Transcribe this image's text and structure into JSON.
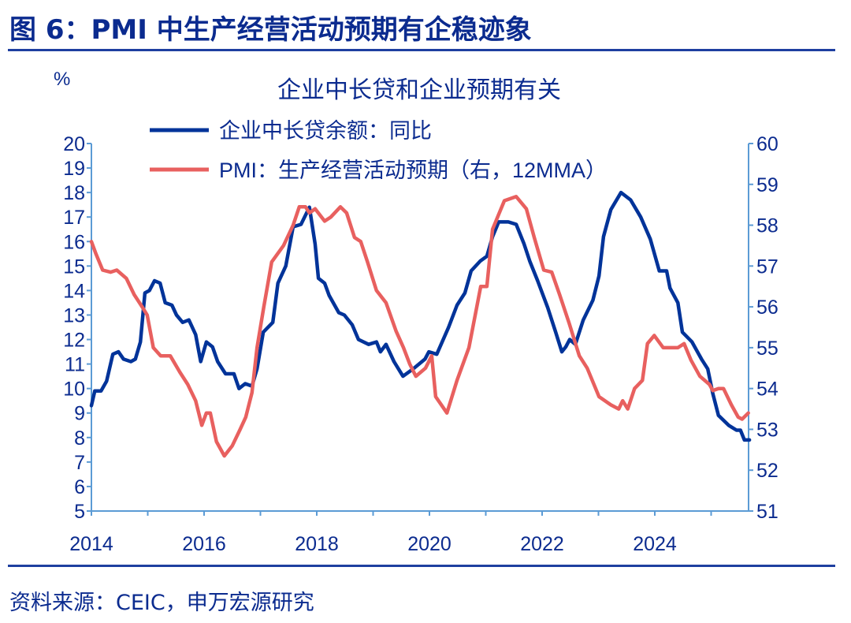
{
  "figure": {
    "title": "图 6：PMI 中生产经营活动预期有企稳迹象",
    "source": "资料来源：CEIC，申万宏源研究"
  },
  "colors": {
    "loan_series": "#003399",
    "pmi_series": "#e8605f",
    "axis": "#5b9bd5",
    "text": "#0b2b8f"
  },
  "chart_data": {
    "type": "line",
    "title": "企业中长贷和企业预期有关",
    "ylabel": "%",
    "xlim": [
      2014,
      2025.68
    ],
    "ylim": [
      5,
      20
    ],
    "y2lim": [
      51,
      60
    ],
    "grid": false,
    "legend_position": "top",
    "x_ticks": [
      "2014",
      "2016",
      "2018",
      "2020",
      "2022",
      "2024"
    ],
    "y_ticks": [
      "5",
      "6",
      "7",
      "8",
      "9",
      "10",
      "11",
      "12",
      "13",
      "14",
      "15",
      "16",
      "17",
      "18",
      "19",
      "20"
    ],
    "y2_ticks": [
      "51",
      "52",
      "53",
      "54",
      "55",
      "56",
      "57",
      "58",
      "59",
      "60"
    ],
    "series": [
      {
        "name": "企业中长贷余额：同比",
        "axis": "left",
        "x": [
          2014.0,
          2014.06,
          2014.17,
          2014.27,
          2014.38,
          2014.48,
          2014.57,
          2014.7,
          2014.78,
          2014.87,
          2014.95,
          2015.03,
          2015.12,
          2015.22,
          2015.31,
          2015.43,
          2015.51,
          2015.62,
          2015.73,
          2015.85,
          2015.94,
          2016.04,
          2016.15,
          2016.24,
          2016.38,
          2016.53,
          2016.62,
          2016.73,
          2016.85,
          2016.94,
          2017.05,
          2017.22,
          2017.31,
          2017.45,
          2017.58,
          2017.72,
          2017.87,
          2017.97,
          2018.03,
          2018.14,
          2018.22,
          2018.39,
          2018.49,
          2018.63,
          2018.74,
          2018.92,
          2019.06,
          2019.13,
          2019.23,
          2019.37,
          2019.53,
          2019.71,
          2019.92,
          2019.99,
          2020.13,
          2020.34,
          2020.49,
          2020.63,
          2020.74,
          2020.9,
          2021.02,
          2021.12,
          2021.23,
          2021.4,
          2021.54,
          2021.68,
          2021.78,
          2021.92,
          2022.1,
          2022.24,
          2022.35,
          2022.42,
          2022.49,
          2022.59,
          2022.73,
          2022.9,
          2023.01,
          2023.09,
          2023.22,
          2023.4,
          2023.57,
          2023.75,
          2023.92,
          2024.08,
          2024.21,
          2024.27,
          2024.41,
          2024.49,
          2024.66,
          2024.83,
          2024.94,
          2025.03,
          2025.13,
          2025.31,
          2025.45,
          2025.52,
          2025.59,
          2025.68
        ],
        "y": [
          9.3,
          9.9,
          9.9,
          10.3,
          11.4,
          11.5,
          11.2,
          11.1,
          11.2,
          11.9,
          13.9,
          14.0,
          14.4,
          14.3,
          13.5,
          13.4,
          13.0,
          12.7,
          12.8,
          12.2,
          11.1,
          11.9,
          11.7,
          11.1,
          10.6,
          10.6,
          10.0,
          10.2,
          10.1,
          10.8,
          12.3,
          12.7,
          14.3,
          15.0,
          16.6,
          16.7,
          17.4,
          15.9,
          14.5,
          14.3,
          13.8,
          13.1,
          13.0,
          12.6,
          12.0,
          11.8,
          11.9,
          11.5,
          11.8,
          11.1,
          10.5,
          10.8,
          11.2,
          11.5,
          11.4,
          12.5,
          13.4,
          13.9,
          14.8,
          15.2,
          15.4,
          16.2,
          16.8,
          16.8,
          16.7,
          15.9,
          15.2,
          14.4,
          13.3,
          12.3,
          11.5,
          11.7,
          12.0,
          11.8,
          12.8,
          13.6,
          14.6,
          16.2,
          17.3,
          18.0,
          17.7,
          17.0,
          16.1,
          14.8,
          14.8,
          14.1,
          13.5,
          12.3,
          11.9,
          11.2,
          10.8,
          9.8,
          8.9,
          8.5,
          8.3,
          8.3,
          7.9,
          7.9
        ]
      },
      {
        "name": "PMI：生产经营活动预期（右，12MMA）",
        "axis": "right",
        "x": [
          2014.0,
          2014.08,
          2014.2,
          2014.34,
          2014.45,
          2014.62,
          2014.76,
          2014.9,
          2014.99,
          2015.1,
          2015.23,
          2015.4,
          2015.57,
          2015.71,
          2015.85,
          2015.96,
          2016.04,
          2016.11,
          2016.22,
          2016.36,
          2016.5,
          2016.64,
          2016.74,
          2016.85,
          2016.94,
          2017.06,
          2017.2,
          2017.41,
          2017.58,
          2017.69,
          2017.8,
          2017.87,
          2017.97,
          2018.14,
          2018.25,
          2018.42,
          2018.53,
          2018.67,
          2018.78,
          2018.9,
          2019.06,
          2019.23,
          2019.41,
          2019.54,
          2019.65,
          2019.76,
          2019.93,
          2020.04,
          2020.11,
          2020.31,
          2020.49,
          2020.7,
          2020.91,
          2021.02,
          2021.12,
          2021.33,
          2021.54,
          2021.72,
          2021.86,
          2022.03,
          2022.17,
          2022.31,
          2022.48,
          2022.66,
          2022.8,
          2023.01,
          2023.22,
          2023.36,
          2023.43,
          2023.52,
          2023.64,
          2023.78,
          2023.87,
          2023.99,
          2024.15,
          2024.41,
          2024.52,
          2024.64,
          2024.8,
          2024.97,
          2025.03,
          2025.13,
          2025.22,
          2025.36,
          2025.48,
          2025.55,
          2025.66
        ],
        "y": [
          57.6,
          57.3,
          56.9,
          56.85,
          56.9,
          56.7,
          56.3,
          56.0,
          55.8,
          55.0,
          54.8,
          54.8,
          54.4,
          54.1,
          53.7,
          53.1,
          53.4,
          53.4,
          52.7,
          52.35,
          52.6,
          53.0,
          53.3,
          53.9,
          55.0,
          56.0,
          57.1,
          57.5,
          58.0,
          58.45,
          58.45,
          58.3,
          58.4,
          58.1,
          58.2,
          58.45,
          58.3,
          57.7,
          57.6,
          57.1,
          56.4,
          56.1,
          55.4,
          55.0,
          54.6,
          54.3,
          54.5,
          54.8,
          53.8,
          53.4,
          54.2,
          55.0,
          56.5,
          56.5,
          57.9,
          58.6,
          58.7,
          58.4,
          57.7,
          56.9,
          56.85,
          56.3,
          55.6,
          54.8,
          54.5,
          53.8,
          53.6,
          53.5,
          53.7,
          53.5,
          54.0,
          54.2,
          55.1,
          55.3,
          55.0,
          55.0,
          55.1,
          54.7,
          54.3,
          54.1,
          53.95,
          54.0,
          54.0,
          53.6,
          53.3,
          53.25,
          53.4
        ]
      }
    ]
  }
}
